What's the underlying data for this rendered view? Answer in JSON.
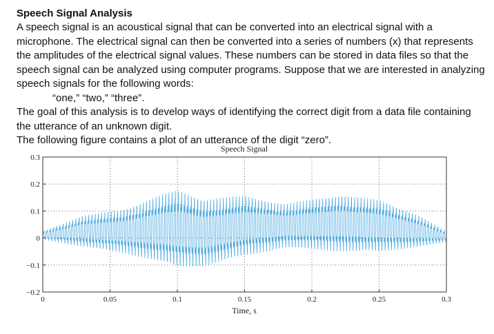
{
  "document": {
    "heading": "Speech Signal Analysis",
    "para1": "A speech signal is an acoustical signal that can be converted into an electrical signal with a microphone. The electrical signal can then be converted into a series of numbers (x) that represents the amplitudes of the electrical signal values. These numbers can be stored in data files so that the speech signal can be analyzed using computer programs. Suppose that we are interested in analyzing speech signals for the following words:",
    "words": "“one,” “two,” “three”.",
    "para2": "The goal of this analysis is to develop ways of identifying the correct digit from a data file containing the utterance of an unknown digit.",
    "para3": "The following figure contains a plot of an utterance of the digit “zero”."
  },
  "chart_data": {
    "type": "line",
    "title": "Speech Signal",
    "xlabel": "Time, s",
    "ylabel": "",
    "xlim": [
      0,
      0.3
    ],
    "ylim": [
      -0.2,
      0.3
    ],
    "xticks": [
      "0",
      "0.05",
      "0.1",
      "0.15",
      "0.2",
      "0.25",
      "0.3"
    ],
    "yticks": [
      "0.3",
      "0.2",
      "0.1",
      "0",
      "−0.1",
      "−0.2"
    ],
    "grid": true,
    "line_color": "#4aa8de",
    "series": [
      {
        "name": "",
        "envelope": {
          "t": [
            0,
            0.03,
            0.06,
            0.09,
            0.1,
            0.12,
            0.15,
            0.18,
            0.2,
            0.22,
            0.25,
            0.28,
            0.3
          ],
          "max": [
            0.03,
            0.1,
            0.13,
            0.2,
            0.22,
            0.18,
            0.19,
            0.15,
            0.17,
            0.19,
            0.17,
            0.1,
            0.03
          ],
          "min": [
            -0.01,
            -0.05,
            -0.08,
            -0.13,
            -0.15,
            -0.14,
            -0.1,
            -0.06,
            -0.07,
            -0.08,
            -0.08,
            -0.05,
            -0.02
          ]
        }
      }
    ]
  }
}
